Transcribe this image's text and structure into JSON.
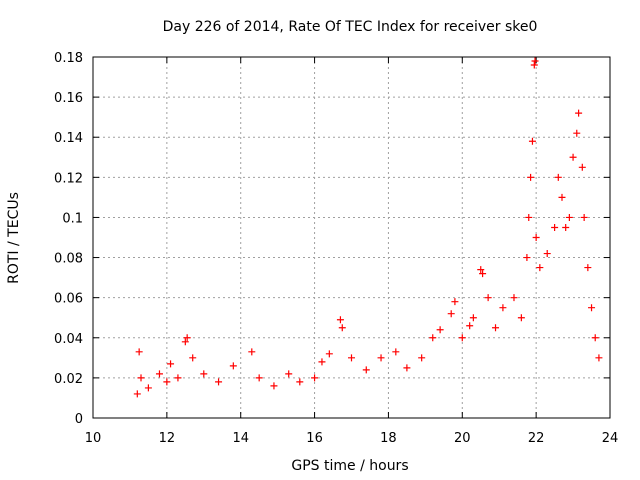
{
  "chart_data": {
    "type": "scatter",
    "title": "Day 226 of 2014, Rate Of TEC Index for receiver ske0",
    "xlabel": "GPS time / hours",
    "ylabel": "ROTI / TECUs",
    "xlim": [
      10,
      24
    ],
    "ylim": [
      0,
      0.18
    ],
    "xticks": [
      10,
      12,
      14,
      16,
      18,
      20,
      22,
      24
    ],
    "yticks": [
      0,
      0.02,
      0.04,
      0.06,
      0.08,
      0.1,
      0.12,
      0.14,
      0.16,
      0.18
    ],
    "grid": true,
    "marker": "+",
    "color": "#ff0000",
    "series": [
      {
        "name": "ROTI",
        "points": [
          [
            11.2,
            0.012
          ],
          [
            11.25,
            0.033
          ],
          [
            11.3,
            0.02
          ],
          [
            11.5,
            0.015
          ],
          [
            11.8,
            0.022
          ],
          [
            12.0,
            0.018
          ],
          [
            12.1,
            0.027
          ],
          [
            12.3,
            0.02
          ],
          [
            12.5,
            0.038
          ],
          [
            12.55,
            0.04
          ],
          [
            12.7,
            0.03
          ],
          [
            13.0,
            0.022
          ],
          [
            13.4,
            0.018
          ],
          [
            13.8,
            0.026
          ],
          [
            14.3,
            0.033
          ],
          [
            14.5,
            0.02
          ],
          [
            14.9,
            0.016
          ],
          [
            15.3,
            0.022
          ],
          [
            15.6,
            0.018
          ],
          [
            16.0,
            0.02
          ],
          [
            16.2,
            0.028
          ],
          [
            16.4,
            0.032
          ],
          [
            16.7,
            0.049
          ],
          [
            16.75,
            0.045
          ],
          [
            17.0,
            0.03
          ],
          [
            17.4,
            0.024
          ],
          [
            17.8,
            0.03
          ],
          [
            18.2,
            0.033
          ],
          [
            18.5,
            0.025
          ],
          [
            18.9,
            0.03
          ],
          [
            19.2,
            0.04
          ],
          [
            19.4,
            0.044
          ],
          [
            19.7,
            0.052
          ],
          [
            19.8,
            0.058
          ],
          [
            20.0,
            0.04
          ],
          [
            20.2,
            0.046
          ],
          [
            20.3,
            0.05
          ],
          [
            20.5,
            0.074
          ],
          [
            20.55,
            0.072
          ],
          [
            20.7,
            0.06
          ],
          [
            20.9,
            0.045
          ],
          [
            21.1,
            0.055
          ],
          [
            21.4,
            0.06
          ],
          [
            21.6,
            0.05
          ],
          [
            21.75,
            0.08
          ],
          [
            21.8,
            0.1
          ],
          [
            21.85,
            0.12
          ],
          [
            21.9,
            0.138
          ],
          [
            21.95,
            0.176
          ],
          [
            21.97,
            0.178
          ],
          [
            22.0,
            0.09
          ],
          [
            22.1,
            0.075
          ],
          [
            22.3,
            0.082
          ],
          [
            22.5,
            0.095
          ],
          [
            22.6,
            0.12
          ],
          [
            22.7,
            0.11
          ],
          [
            22.8,
            0.095
          ],
          [
            22.9,
            0.1
          ],
          [
            23.0,
            0.13
          ],
          [
            23.1,
            0.142
          ],
          [
            23.15,
            0.152
          ],
          [
            23.25,
            0.125
          ],
          [
            23.3,
            0.1
          ],
          [
            23.4,
            0.075
          ],
          [
            23.5,
            0.055
          ],
          [
            23.6,
            0.04
          ],
          [
            23.7,
            0.03
          ]
        ]
      }
    ]
  }
}
